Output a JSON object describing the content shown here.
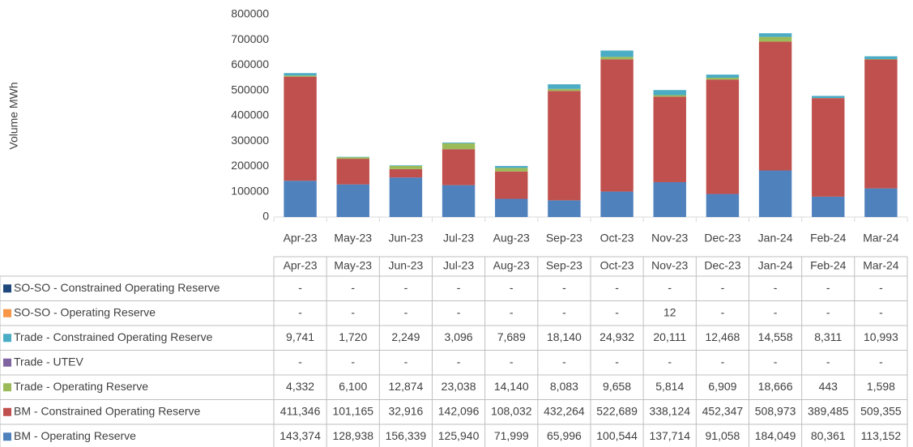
{
  "chart_data": {
    "type": "bar",
    "stacked": true,
    "y_label": "Volume MWh",
    "categories": [
      "Apr-23",
      "May-23",
      "Jun-23",
      "Jul-23",
      "Aug-23",
      "Sep-23",
      "Oct-23",
      "Nov-23",
      "Dec-23",
      "Jan-24",
      "Feb-24",
      "Mar-24"
    ],
    "ylim": [
      0,
      800000
    ],
    "yticks": [
      0,
      100000,
      200000,
      300000,
      400000,
      500000,
      600000,
      700000,
      800000
    ],
    "series": [
      {
        "name": "SO-SO - Constrained Operating Reserve",
        "color": "#1f497d",
        "values": [
          0,
          0,
          0,
          0,
          0,
          0,
          0,
          0,
          0,
          0,
          0,
          0
        ],
        "value_labels": [
          "-",
          "-",
          "-",
          "-",
          "-",
          "-",
          "-",
          "-",
          "-",
          "-",
          "-",
          "-"
        ]
      },
      {
        "name": "SO-SO - Operating Reserve",
        "color": "#f79646",
        "values": [
          0,
          0,
          0,
          0,
          0,
          0,
          0,
          12,
          0,
          0,
          0,
          0
        ],
        "value_labels": [
          "-",
          "-",
          "-",
          "-",
          "-",
          "-",
          "-",
          "12",
          "-",
          "-",
          "-",
          "-"
        ]
      },
      {
        "name": "Trade - Constrained Operating Reserve",
        "color": "#4bacc6",
        "values": [
          9741,
          1720,
          2249,
          3096,
          7689,
          18140,
          24932,
          20111,
          12468,
          14558,
          8311,
          10993
        ],
        "value_labels": [
          "9,741",
          "1,720",
          "2,249",
          "3,096",
          "7,689",
          "18,140",
          "24,932",
          "20,111",
          "12,468",
          "14,558",
          "8,311",
          "10,993"
        ]
      },
      {
        "name": "Trade - UTEV",
        "color": "#8064a2",
        "values": [
          0,
          0,
          0,
          0,
          0,
          0,
          0,
          0,
          0,
          0,
          0,
          0
        ],
        "value_labels": [
          "-",
          "-",
          "-",
          "-",
          "-",
          "-",
          "-",
          "-",
          "-",
          "-",
          "-",
          "-"
        ]
      },
      {
        "name": "Trade - Operating Reserve",
        "color": "#9bbb59",
        "values": [
          4332,
          6100,
          12874,
          23038,
          14140,
          8083,
          9658,
          5814,
          6909,
          18666,
          443,
          1598
        ],
        "value_labels": [
          "4,332",
          "6,100",
          "12,874",
          "23,038",
          "14,140",
          "8,083",
          "9,658",
          "5,814",
          "6,909",
          "18,666",
          "443",
          "1,598"
        ]
      },
      {
        "name": "BM - Constrained Operating Reserve",
        "color": "#c0504d",
        "values": [
          411346,
          101165,
          32916,
          142096,
          108032,
          432264,
          522689,
          338124,
          452347,
          508973,
          389485,
          509355
        ],
        "value_labels": [
          "411,346",
          "101,165",
          "32,916",
          "142,096",
          "108,032",
          "432,264",
          "522,689",
          "338,124",
          "452,347",
          "508,973",
          "389,485",
          "509,355"
        ]
      },
      {
        "name": "BM - Operating Reserve",
        "color": "#4f81bd",
        "values": [
          143374,
          128938,
          156339,
          125940,
          71999,
          65996,
          100544,
          137714,
          91058,
          184049,
          80361,
          113152
        ],
        "value_labels": [
          "143,374",
          "128,938",
          "156,339",
          "125,940",
          "71,999",
          "65,996",
          "100,544",
          "137,714",
          "91,058",
          "184,049",
          "80,361",
          "113,152"
        ]
      }
    ]
  }
}
